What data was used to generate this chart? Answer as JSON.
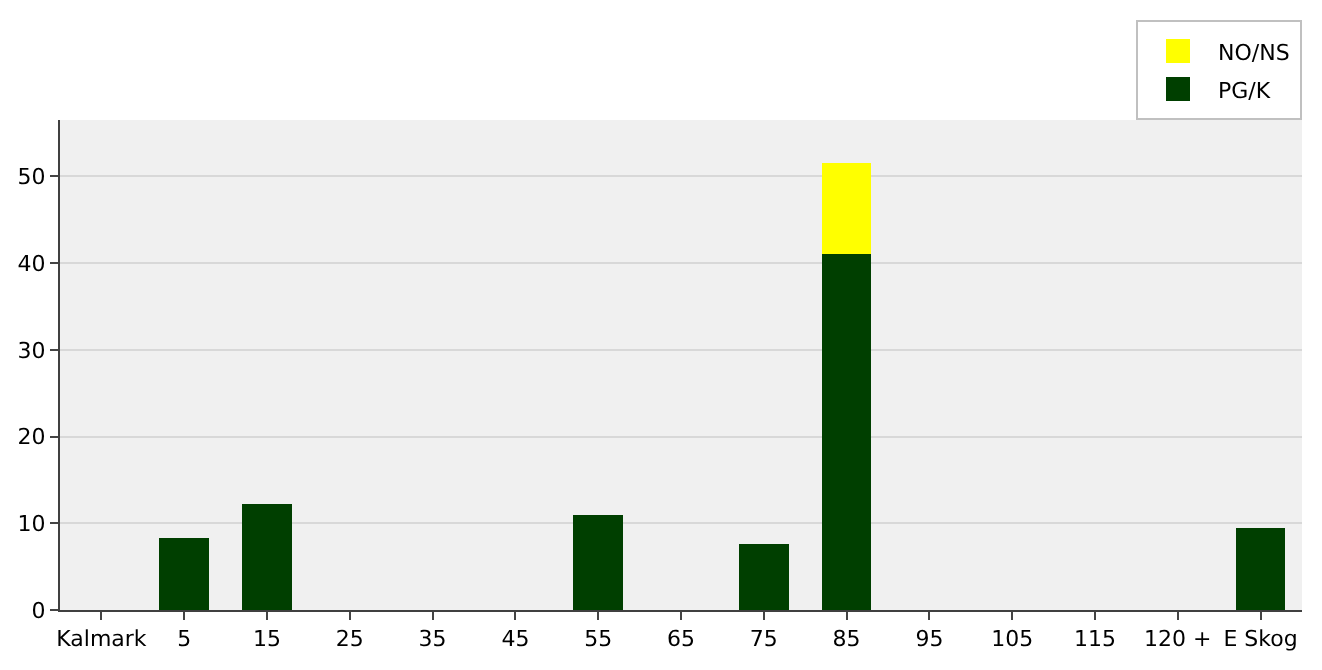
{
  "chart_data": {
    "type": "bar",
    "stacked": true,
    "categories": [
      "Kalmark",
      "5",
      "15",
      "25",
      "35",
      "45",
      "55",
      "65",
      "75",
      "85",
      "95",
      "105",
      "115",
      "120 +",
      "E Skog"
    ],
    "series": [
      {
        "name": "PG/K",
        "color": "#003f00",
        "values": [
          0,
          8.3,
          12.2,
          0,
          0,
          0,
          10.9,
          0,
          7.6,
          41.1,
          0,
          0,
          0,
          0,
          9.5
        ]
      },
      {
        "name": "NO/NS",
        "color": "#ffff00",
        "values": [
          0,
          0,
          0,
          0,
          0,
          0,
          0,
          0,
          0,
          10.4,
          0,
          0,
          0,
          0,
          0
        ]
      }
    ],
    "ylim": [
      0,
      56.5
    ],
    "yticks": [
      0,
      10,
      20,
      30,
      40,
      50
    ],
    "grid": "y",
    "legend": "top right"
  }
}
